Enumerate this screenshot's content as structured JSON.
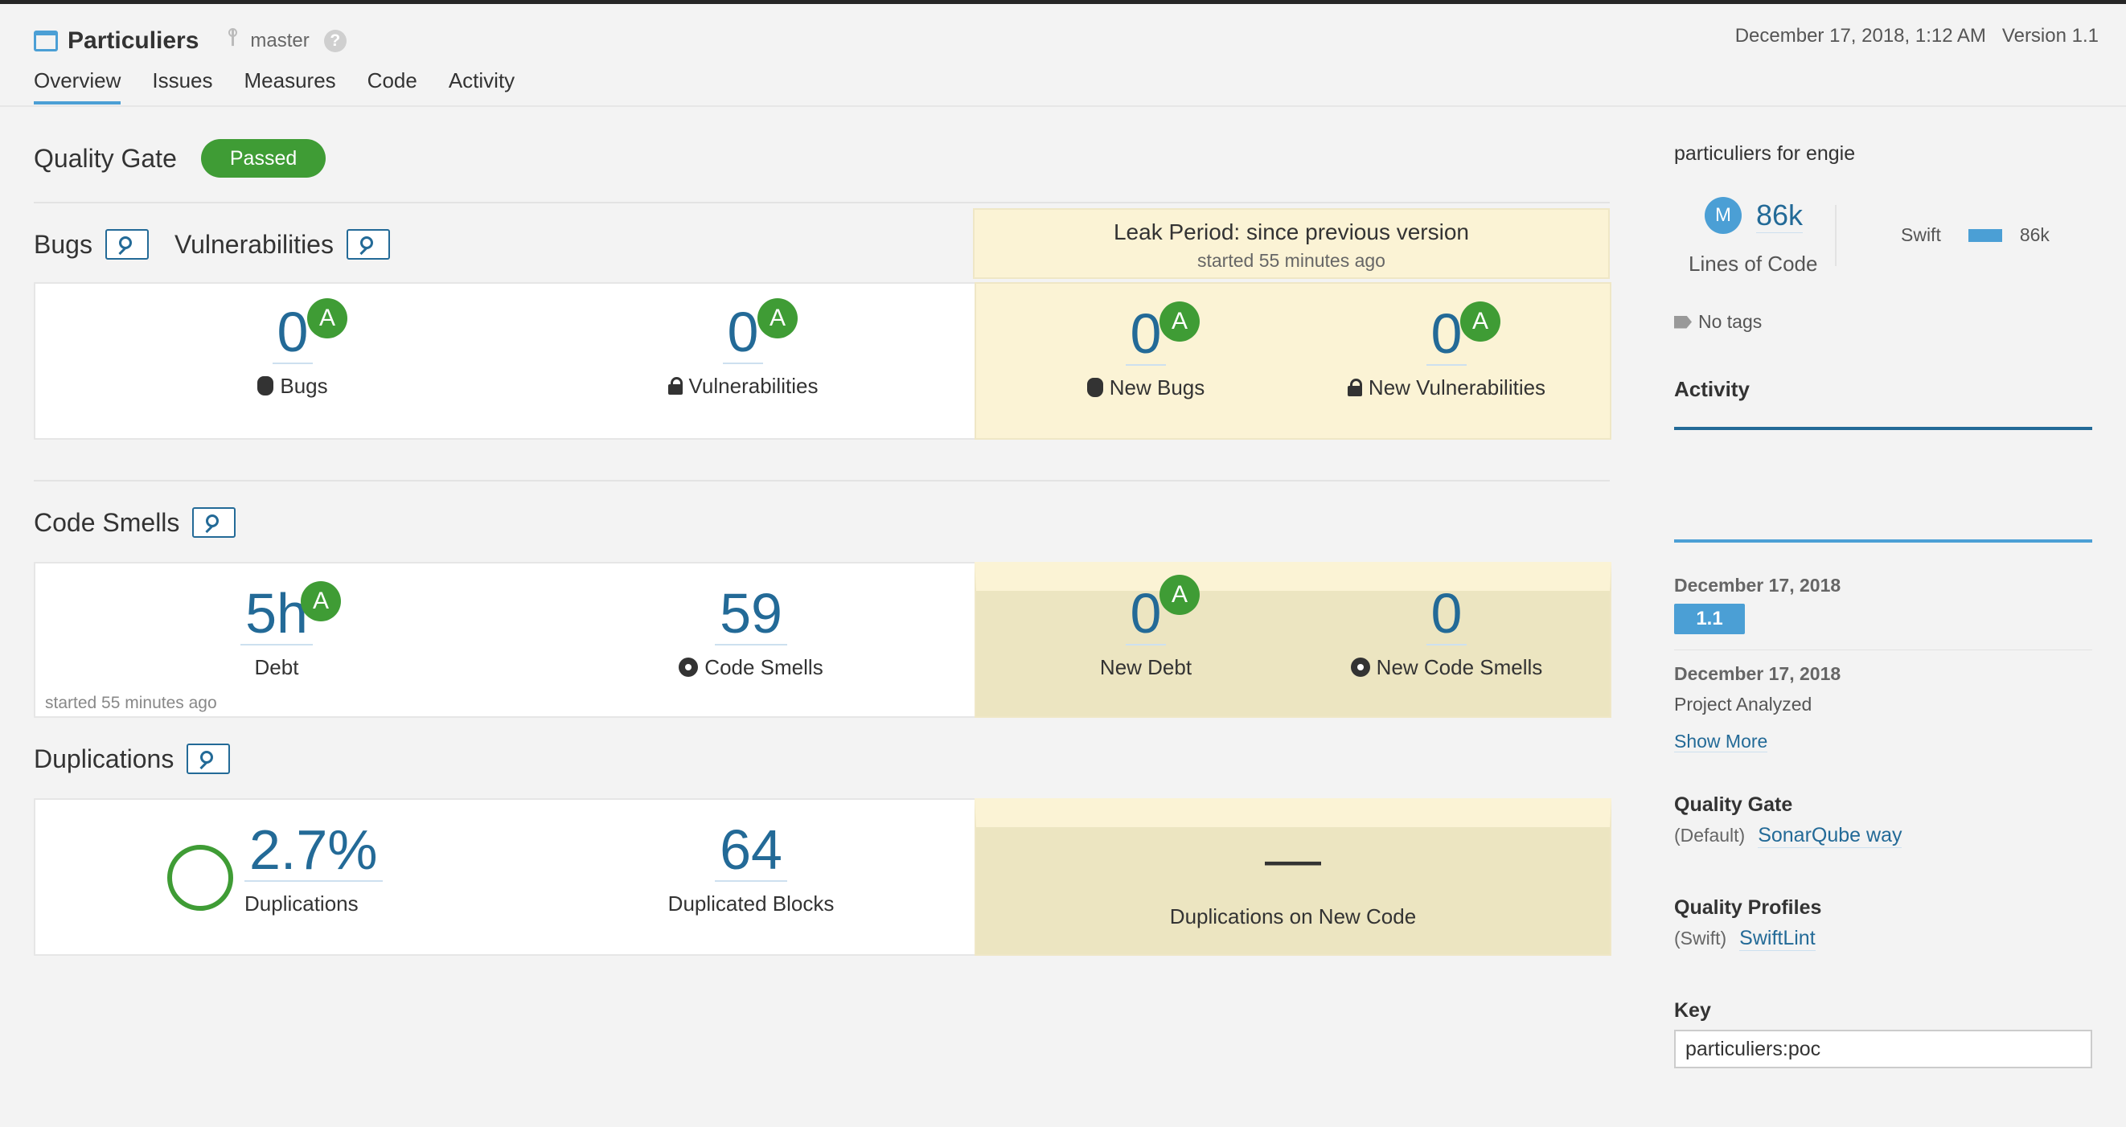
{
  "header": {
    "project_name": "Particuliers",
    "branch": "master",
    "help_glyph": "?",
    "date": "December 17, 2018, 1:12 AM",
    "version": "Version 1.1",
    "nav": [
      "Overview",
      "Issues",
      "Measures",
      "Code",
      "Activity"
    ],
    "active_tab": "Overview"
  },
  "quality_gate": {
    "title": "Quality Gate",
    "status": "Passed",
    "status_color": "#3f9c35"
  },
  "bugs_vulns": {
    "bugs_title": "Bugs",
    "vulns_title": "Vulnerabilities",
    "leak_title": "Leak Period: since previous version",
    "leak_sub": "started 55 minutes ago",
    "bugs_value": "0",
    "bugs_rating": "A",
    "bugs_label": "Bugs",
    "vulns_value": "0",
    "vulns_rating": "A",
    "vulns_label": "Vulnerabilities",
    "new_bugs_value": "0",
    "new_bugs_rating": "A",
    "new_bugs_label": "New Bugs",
    "new_vulns_value": "0",
    "new_vulns_rating": "A",
    "new_vulns_label": "New Vulnerabilities"
  },
  "code_smells": {
    "title": "Code Smells",
    "debt_value": "5h",
    "debt_rating": "A",
    "debt_label": "Debt",
    "smells_value": "59",
    "smells_label": "Code Smells",
    "started": "started 55 minutes ago",
    "new_debt_value": "0",
    "new_debt_rating": "A",
    "new_debt_label": "New Debt",
    "new_smells_value": "0",
    "new_smells_label": "New Code Smells"
  },
  "duplications": {
    "title": "Duplications",
    "dup_value": "2.7%",
    "dup_label": "Duplications",
    "blocks_value": "64",
    "blocks_label": "Duplicated Blocks",
    "new_dup_value": "—",
    "new_dup_label": "Duplications on New Code"
  },
  "sidebar": {
    "description": "particuliers for engie",
    "avatar_letter": "M",
    "loc_value": "86k",
    "loc_label": "Lines of Code",
    "language": "Swift",
    "language_value": "86k",
    "tags": "No tags",
    "activity_title": "Activity",
    "event1_date": "December 17, 2018",
    "event1_version": "1.1",
    "event2_date": "December 17, 2018",
    "event2_text": "Project Analyzed",
    "show_more": "Show More",
    "qg_title": "Quality Gate",
    "qg_prefix": "(Default)",
    "qg_link": "SonarQube way",
    "qp_title": "Quality Profiles",
    "qp_prefix": "(Swift)",
    "qp_link": "SwiftLint",
    "key_title": "Key",
    "key_value": "particuliers:poc"
  },
  "icons": [
    "project-icon",
    "branch-icon",
    "help-icon",
    "search-link-icon",
    "bug-icon",
    "lock-icon",
    "code-smell-icon",
    "tag-icon",
    "duplication-circle-icon"
  ],
  "colors": {
    "accent": "#4b9fd5",
    "link": "#236a97",
    "rating_a": "#3f9c35",
    "leak_bg": "#fbf3d5"
  }
}
